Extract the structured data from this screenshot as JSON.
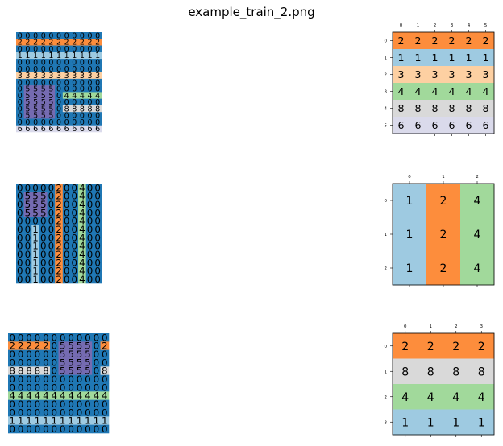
{
  "title": "example_train_2.png",
  "colors": {
    "0": "#1f77b4",
    "1": "#9ecae1",
    "2": "#fd8d3c",
    "3": "#fdd0a2",
    "4": "#a1d99b",
    "5": "#756bb1",
    "6": "#dadaeb",
    "8": "#d9d9d9"
  },
  "examples": [
    {
      "input": [
        "00000000000",
        "22222222222",
        "00000000000",
        "11111111111",
        "00000000000",
        "00000000000",
        "33333333333",
        "00000000000",
        "05555000000",
        "05555044444",
        "05555000000",
        "05555088888",
        "05555000000",
        "00000000000",
        "66666666666"
      ],
      "output": [
        [
          2,
          2,
          2,
          2,
          2,
          2
        ],
        [
          1,
          1,
          1,
          1,
          1,
          1
        ],
        [
          3,
          3,
          3,
          3,
          3,
          3
        ],
        [
          4,
          4,
          4,
          4,
          4,
          4
        ],
        [
          8,
          8,
          8,
          8,
          8,
          8
        ],
        [
          6,
          6,
          6,
          6,
          6,
          6
        ]
      ]
    },
    {
      "input": [
        "00000200400",
        "05550200400",
        "05550200400",
        "05550200400",
        "00000200400",
        "00100200400",
        "00100200400",
        "00100200400",
        "00100200400",
        "00100200400",
        "00100200400",
        "00100200400"
      ],
      "output": [
        [
          1,
          2,
          4
        ],
        [
          1,
          2,
          4
        ],
        [
          1,
          2,
          4
        ]
      ]
    },
    {
      "input": [
        "000000000000",
        "222220555502",
        "000000555500",
        "000000555500",
        "888880555508",
        "000000000000",
        "000000000000",
        "444444444444",
        "000000000000",
        "000000000000",
        "111111111111",
        "000000000000"
      ],
      "output": [
        [
          2,
          2,
          2,
          2
        ],
        [
          8,
          8,
          8,
          8
        ],
        [
          4,
          4,
          4,
          4
        ],
        [
          1,
          1,
          1,
          1
        ]
      ]
    }
  ]
}
